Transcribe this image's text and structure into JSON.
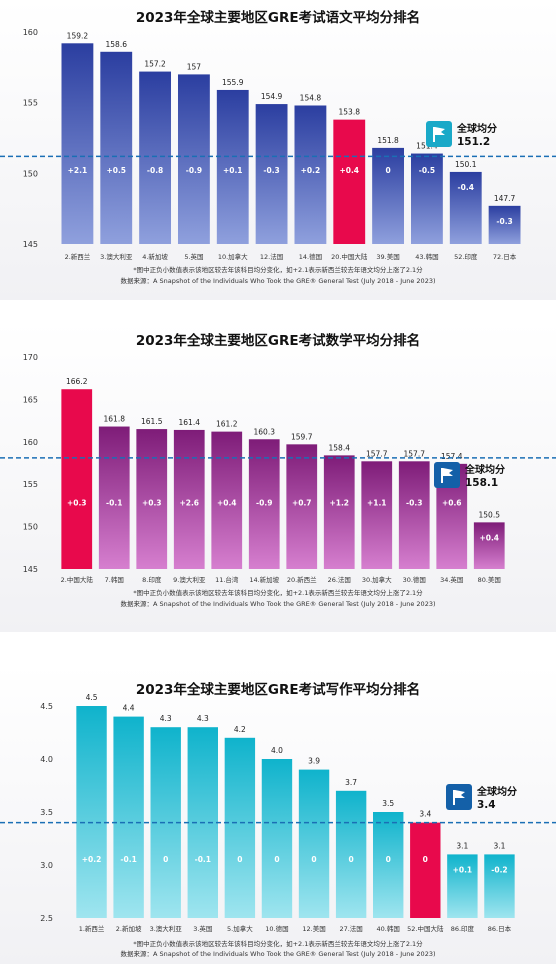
{
  "global_label": "全球均分",
  "chart_data": [
    {
      "type": "bar",
      "title": "2023年全球主要地区GRE考试语文平均分排名",
      "categories": [
        "2.新西兰",
        "3.澳大利亚",
        "4.新加坡",
        "5.英国",
        "10.加拿大",
        "12.法国",
        "14.德国",
        "20.中国大陆",
        "39.美国",
        "43.韩国",
        "52.印度",
        "72.日本"
      ],
      "values": [
        159.2,
        158.6,
        157.2,
        157,
        155.9,
        154.9,
        154.8,
        153.8,
        151.8,
        151.4,
        150.1,
        147.7
      ],
      "value_labels": [
        "159.2",
        "158.6",
        "157.2",
        "157",
        "155.9",
        "154.9",
        "154.8",
        "153.8",
        "151.8",
        "151.4",
        "150.1",
        "147.7"
      ],
      "changes": [
        "+2.1",
        "+0.5",
        "-0.8",
        "-0.9",
        "+0.1",
        "-0.3",
        "+0.2",
        "+0.4",
        "0",
        "-0.5",
        "-0.4",
        "-0.3"
      ],
      "highlight_index": 7,
      "ylim": [
        145,
        160
      ],
      "yticks": [
        "145",
        "150",
        "155",
        "160"
      ],
      "global_average": 151.2,
      "global_average_label": "151.2",
      "bar_color_top": "#2b3ea0",
      "bar_color_bottom": "#8fa0dd",
      "highlight_color": "#e8094c",
      "badge_color": "#1aa9c8",
      "footnote": "*图中正负小数值表示该地区较去年该科目均分变化，如+2.1表示新西兰较去年语文均分上涨了2.1分",
      "source": "数据来源：A Snapshot of the Individuals Who Took the GRE® General Test (July 2018 - June 2023)"
    },
    {
      "type": "bar",
      "title": "2023年全球主要地区GRE考试数学平均分排名",
      "categories": [
        "2.中国大陆",
        "7.韩国",
        "8.印度",
        "9.澳大利亚",
        "11.台湾",
        "14.新加坡",
        "20.新西兰",
        "26.法国",
        "30.加拿大",
        "30.德国",
        "34.英国",
        "80.美国"
      ],
      "values": [
        166.2,
        161.8,
        161.5,
        161.4,
        161.2,
        160.3,
        159.7,
        158.4,
        157.7,
        157.7,
        157.4,
        150.5
      ],
      "value_labels": [
        "166.2",
        "161.8",
        "161.5",
        "161.4",
        "161.2",
        "160.3",
        "159.7",
        "158.4",
        "157.7",
        "157.7",
        "157.4",
        "150.5"
      ],
      "changes": [
        "+0.3",
        "-0.1",
        "+0.3",
        "+2.6",
        "+0.4",
        "-0.9",
        "+0.7",
        "+1.2",
        "+1.1",
        "-0.3",
        "+0.6",
        "+0.4"
      ],
      "highlight_index": 0,
      "ylim": [
        145,
        170
      ],
      "yticks": [
        "145",
        "150",
        "155",
        "160",
        "165",
        "170"
      ],
      "global_average": 158.1,
      "global_average_label": "158.1",
      "bar_color_top": "#7e1c78",
      "bar_color_bottom": "#d67fcf",
      "highlight_color": "#e8094c",
      "badge_color": "#1460a8",
      "footnote": "*图中正负小数值表示该地区较去年该科目均分变化，如+2.1表示新西兰较去年语文均分上涨了2.1分",
      "source": "数据来源：A Snapshot of the Individuals Who Took the GRE® General Test (July 2018 - June 2023)"
    },
    {
      "type": "bar",
      "title": "2023年全球主要地区GRE考试写作平均分排名",
      "categories": [
        "1.新西兰",
        "2.新加坡",
        "3.澳大利亚",
        "3.英国",
        "5.加拿大",
        "10.德国",
        "12.美国",
        "27.法国",
        "40.韩国",
        "52.中国大陆",
        "86.印度",
        "86.日本"
      ],
      "values": [
        4.5,
        4.4,
        4.3,
        4.3,
        4.2,
        4.0,
        3.9,
        3.7,
        3.5,
        3.4,
        3.1,
        3.1
      ],
      "value_labels": [
        "4.5",
        "4.4",
        "4.3",
        "4.3",
        "4.2",
        "4.0",
        "3.9",
        "3.7",
        "3.5",
        "3.4",
        "3.1",
        "3.1"
      ],
      "changes": [
        "+0.2",
        "-0.1",
        "0",
        "-0.1",
        "0",
        "0",
        "0",
        "0",
        "0",
        "0",
        "+0.1",
        "-0.2"
      ],
      "highlight_index": 9,
      "ylim": [
        2.5,
        4.5
      ],
      "yticks": [
        "2.5",
        "3.0",
        "3.5",
        "4.0",
        "4.5"
      ],
      "global_average": 3.4,
      "global_average_label": "3.4",
      "bar_color_top": "#0fb3cc",
      "bar_color_bottom": "#9fe5ef",
      "highlight_color": "#e8094c",
      "badge_color": "#1460a8",
      "footnote": "*图中正负小数值表示该地区较去年该科目均分变化，如+2.1表示新西兰较去年语文均分上涨了2.1分",
      "source": "数据来源：A Snapshot of the Individuals Who Took the GRE® General Test (July 2018 - June 2023)"
    }
  ]
}
